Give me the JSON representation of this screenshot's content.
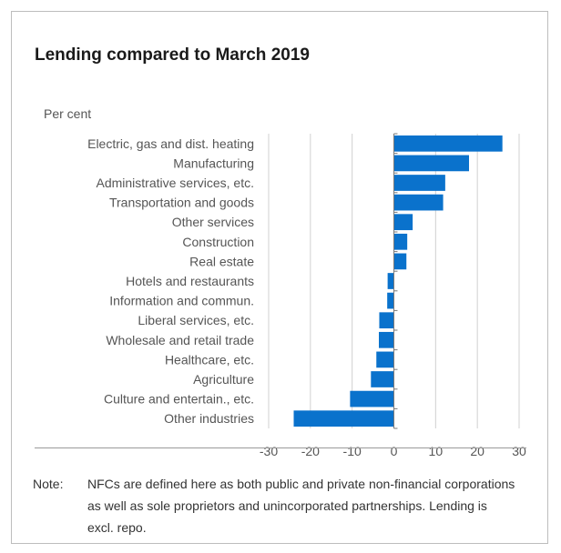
{
  "chart_data": {
    "type": "bar",
    "orientation": "horizontal",
    "title": "Lending compared to March 2019",
    "ylabel": "Per cent",
    "xlabel": "",
    "categories": [
      "Electric, gas and dist. heating",
      "Manufacturing",
      "Administrative services, etc.",
      "Transportation and goods",
      "Other services",
      "Construction",
      "Real estate",
      "Hotels and restaurants",
      "Information and commun.",
      "Liberal services, etc.",
      "Wholesale and retail trade",
      "Healthcare, etc.",
      "Agriculture",
      "Culture and entertain., etc.",
      "Other industries"
    ],
    "values": [
      26,
      18,
      12.3,
      11.8,
      4.5,
      3.2,
      3.0,
      -1.5,
      -1.6,
      -3.5,
      -3.6,
      -4.2,
      -5.5,
      -10.5,
      -24
    ],
    "xlim": [
      -30,
      30
    ],
    "xticks": [
      -30,
      -20,
      -10,
      0,
      10,
      20,
      30
    ],
    "grid": true,
    "bar_color": "#0a72cc"
  },
  "note": {
    "label": "Note:",
    "text": "NFCs are defined here as both public and private non-financial corporations as well as sole proprietors and unincorporated partnerships. Lending is excl. repo."
  }
}
